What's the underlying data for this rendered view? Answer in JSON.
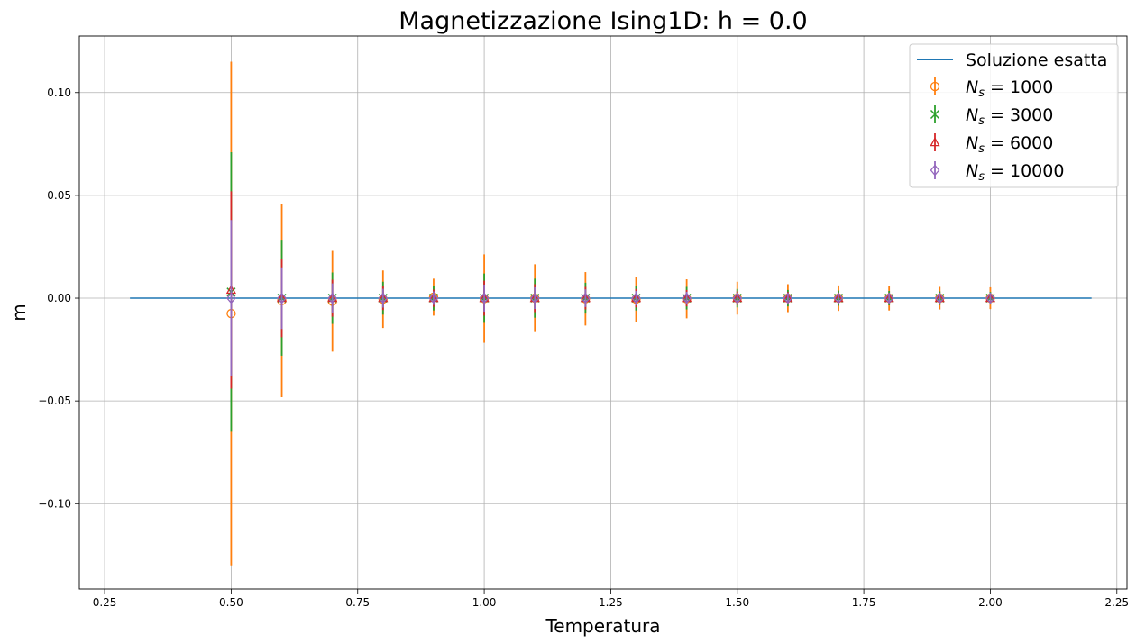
{
  "chart_data": {
    "type": "scatter",
    "title": "Magnetizzazione Ising1D: h = 0.0",
    "xlabel": "Temperatura",
    "ylabel": "m",
    "xlim": [
      0.2,
      2.27
    ],
    "ylim": [
      -0.1415,
      0.1275
    ],
    "xticks": [
      0.25,
      0.5,
      0.75,
      1.0,
      1.25,
      1.5,
      1.75,
      2.0,
      2.25
    ],
    "xtick_labels": [
      "0.25",
      "0.50",
      "0.75",
      "1.00",
      "1.25",
      "1.50",
      "1.75",
      "2.00",
      "2.25"
    ],
    "yticks": [
      -0.1,
      -0.05,
      0.0,
      0.05,
      0.1
    ],
    "ytick_labels": [
      "−0.10",
      "−0.05",
      "0.00",
      "0.05",
      "0.10"
    ],
    "grid": true,
    "legend_position": "top-right",
    "line": {
      "name": "Soluzione esatta",
      "color": "#1f77b4",
      "x": [
        0.3,
        2.2
      ],
      "y": [
        0.0,
        0.0
      ]
    },
    "series": [
      {
        "name_main": "N",
        "name_sub": "s",
        "name_rest": " = 1000",
        "marker": "circle",
        "color": "#ff7f0e",
        "x": [
          0.5,
          0.6,
          0.7,
          0.8,
          0.9,
          1.0,
          1.1,
          1.2,
          1.3,
          1.4,
          1.5,
          1.6,
          1.7,
          1.8,
          1.9,
          2.0
        ],
        "y": [
          -0.0075,
          -0.0012,
          -0.0015,
          -0.0005,
          0.0005,
          -0.0002,
          0.0,
          -0.0003,
          -0.0005,
          -0.0003,
          0.0,
          0.0,
          0.0,
          0.0,
          0.0,
          0.0
        ],
        "err": [
          0.1225,
          0.047,
          0.0245,
          0.014,
          0.009,
          0.0215,
          0.0165,
          0.013,
          0.011,
          0.0095,
          0.008,
          0.0068,
          0.0062,
          0.006,
          0.0055,
          0.0053
        ]
      },
      {
        "name_main": "N",
        "name_sub": "s",
        "name_rest": " = 3000",
        "marker": "x",
        "color": "#2ca02c",
        "x": [
          0.5,
          0.6,
          0.7,
          0.8,
          0.9,
          1.0,
          1.1,
          1.2,
          1.3,
          1.4,
          1.5,
          1.6,
          1.7,
          1.8,
          1.9,
          2.0
        ],
        "y": [
          0.003,
          0.0,
          0.0,
          0.0,
          0.0,
          0.0,
          0.0,
          0.0,
          0.0,
          0.0,
          0.0,
          0.0,
          0.0,
          0.0,
          0.0,
          0.0
        ],
        "err": [
          0.068,
          0.028,
          0.0125,
          0.008,
          0.006,
          0.012,
          0.0095,
          0.0075,
          0.006,
          0.0055,
          0.0045,
          0.004,
          0.0037,
          0.0035,
          0.0033,
          0.003
        ]
      },
      {
        "name_main": "N",
        "name_sub": "s",
        "name_rest": " = 6000",
        "marker": "triangle",
        "color": "#d62728",
        "x": [
          0.5,
          0.6,
          0.7,
          0.8,
          0.9,
          1.0,
          1.1,
          1.2,
          1.3,
          1.4,
          1.5,
          1.6,
          1.7,
          1.8,
          1.9,
          2.0
        ],
        "y": [
          0.004,
          0.0,
          0.0,
          0.0,
          0.0,
          0.0,
          0.0,
          0.0,
          0.0,
          0.0,
          0.0,
          0.0,
          0.0,
          0.0,
          0.0,
          0.0
        ],
        "err": [
          0.048,
          0.019,
          0.009,
          0.0058,
          0.0042,
          0.0085,
          0.0068,
          0.0055,
          0.0045,
          0.004,
          0.0033,
          0.003,
          0.0027,
          0.0025,
          0.0024,
          0.0022
        ]
      },
      {
        "name_main": "N",
        "name_sub": "s",
        "name_rest": " = 10000",
        "marker": "diamond",
        "color": "#9467bd",
        "x": [
          0.5,
          0.6,
          0.7,
          0.8,
          0.9,
          1.0,
          1.1,
          1.2,
          1.3,
          1.4,
          1.5,
          1.6,
          1.7,
          1.8,
          1.9,
          2.0
        ],
        "y": [
          0.0,
          0.0,
          0.0,
          0.0,
          0.0,
          0.0,
          0.0,
          0.0,
          0.0,
          0.0,
          0.0,
          0.0,
          0.0,
          0.0,
          0.0,
          0.0
        ],
        "err": [
          0.038,
          0.015,
          0.0072,
          0.0046,
          0.0033,
          0.0066,
          0.0053,
          0.0043,
          0.0035,
          0.0031,
          0.0026,
          0.0023,
          0.0021,
          0.002,
          0.0019,
          0.0017
        ]
      }
    ]
  }
}
